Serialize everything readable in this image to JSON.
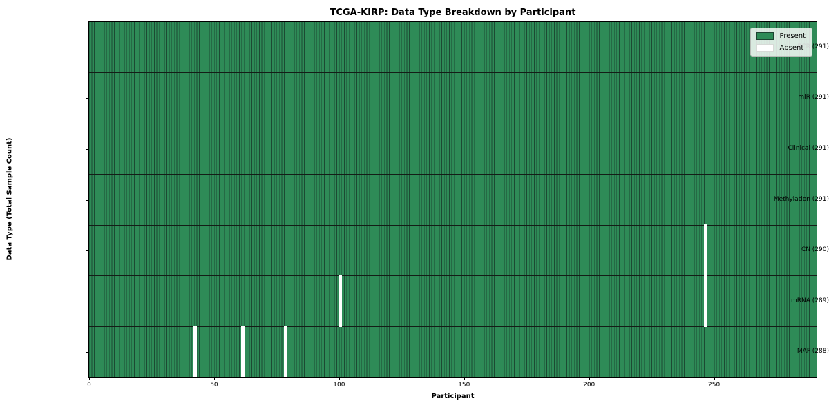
{
  "chart_data": {
    "type": "heatmap",
    "title": "TCGA-KIRP: Data Type Breakdown by Participant",
    "xlabel": "Participant",
    "ylabel": "Data Type (Total Sample Count)",
    "x_range": [
      0,
      291
    ],
    "x_ticks": [
      0,
      50,
      100,
      150,
      200,
      250
    ],
    "n_participants": 291,
    "grid": false,
    "legend_position": "upper right",
    "rows": [
      {
        "name": "BCR",
        "label": "BCR (291)",
        "count": 291,
        "absent_participants": []
      },
      {
        "name": "miR",
        "label": "miR (291)",
        "count": 291,
        "absent_participants": []
      },
      {
        "name": "Clinical",
        "label": "Clinical (291)",
        "count": 291,
        "absent_participants": []
      },
      {
        "name": "Methylation",
        "label": "Methylation (291)",
        "count": 291,
        "absent_participants": []
      },
      {
        "name": "CN",
        "label": "CN (290)",
        "count": 290,
        "absent_participants": [
          246
        ]
      },
      {
        "name": "mRNA",
        "label": "mRNA (289)",
        "count": 289,
        "absent_participants": [
          100,
          246
        ]
      },
      {
        "name": "MAF",
        "label": "MAF (288)",
        "count": 288,
        "absent_participants": [
          42,
          61,
          78
        ]
      }
    ],
    "legend": [
      {
        "label": "Present",
        "color": "#2e8b57"
      },
      {
        "label": "Absent",
        "color": "#ffffff"
      }
    ],
    "colors": {
      "present": "#2e8b57",
      "absent": "#ffffff",
      "bar_edge": "#1c4a33",
      "row_separator": "#141d17",
      "axis": "#000000",
      "figure_background": "#ffffff"
    }
  }
}
